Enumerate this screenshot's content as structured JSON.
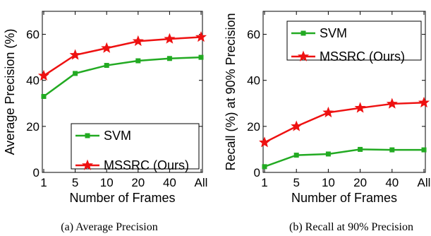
{
  "chart_data": [
    {
      "type": "line",
      "ylabel": "Average Precision (%)",
      "xlabel": "Number of Frames",
      "categories": [
        "1",
        "5",
        "10",
        "20",
        "40",
        "All"
      ],
      "ylim": [
        0,
        70
      ],
      "yticks": [
        "0",
        "20",
        "40",
        "60"
      ],
      "grid": false,
      "legend_position": "bottom-right",
      "series": [
        {
          "name": "SVM",
          "color": "#22aa22",
          "marker": "square",
          "values": [
            33,
            43,
            46.5,
            48.5,
            49.5,
            50
          ]
        },
        {
          "name": "MSSRC (Ours)",
          "color": "#ee1111",
          "marker": "star",
          "values": [
            42,
            51,
            54,
            57,
            58,
            58.8
          ]
        }
      ],
      "caption": "(a)  Average Precision"
    },
    {
      "type": "line",
      "ylabel": "Recall (%) at 90% Precision",
      "xlabel": "Number of Frames",
      "categories": [
        "1",
        "5",
        "10",
        "20",
        "40",
        "All"
      ],
      "ylim": [
        0,
        70
      ],
      "yticks": [
        "0",
        "20",
        "40",
        "60"
      ],
      "grid": false,
      "legend_position": "top-right",
      "series": [
        {
          "name": "SVM",
          "color": "#22aa22",
          "marker": "square",
          "values": [
            2.5,
            7.5,
            8,
            10,
            9.8,
            9.8
          ]
        },
        {
          "name": "MSSRC (Ours)",
          "color": "#ee1111",
          "marker": "star",
          "values": [
            13,
            20,
            26,
            28,
            29.8,
            30.3
          ]
        }
      ],
      "caption": "(b)  Recall at 90% Precision"
    }
  ]
}
